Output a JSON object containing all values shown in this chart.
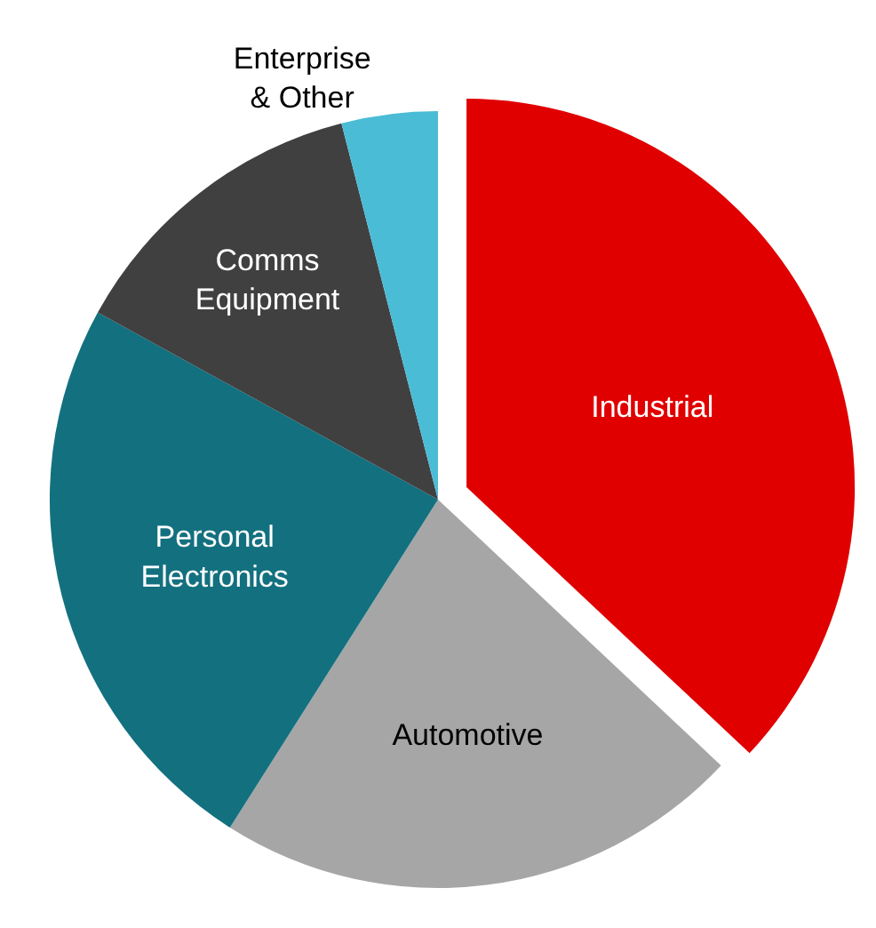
{
  "chart_data": {
    "type": "pie",
    "categories": [
      "Industrial",
      "Automotive",
      "Personal Electronics",
      "Comms Equipment",
      "Enterprise & Other"
    ],
    "values": [
      37,
      22,
      24,
      13,
      4
    ],
    "colors": [
      "#e00000",
      "#a6a6a6",
      "#13707f",
      "#404040",
      "#4bbcd6"
    ],
    "legend": false
  }
}
